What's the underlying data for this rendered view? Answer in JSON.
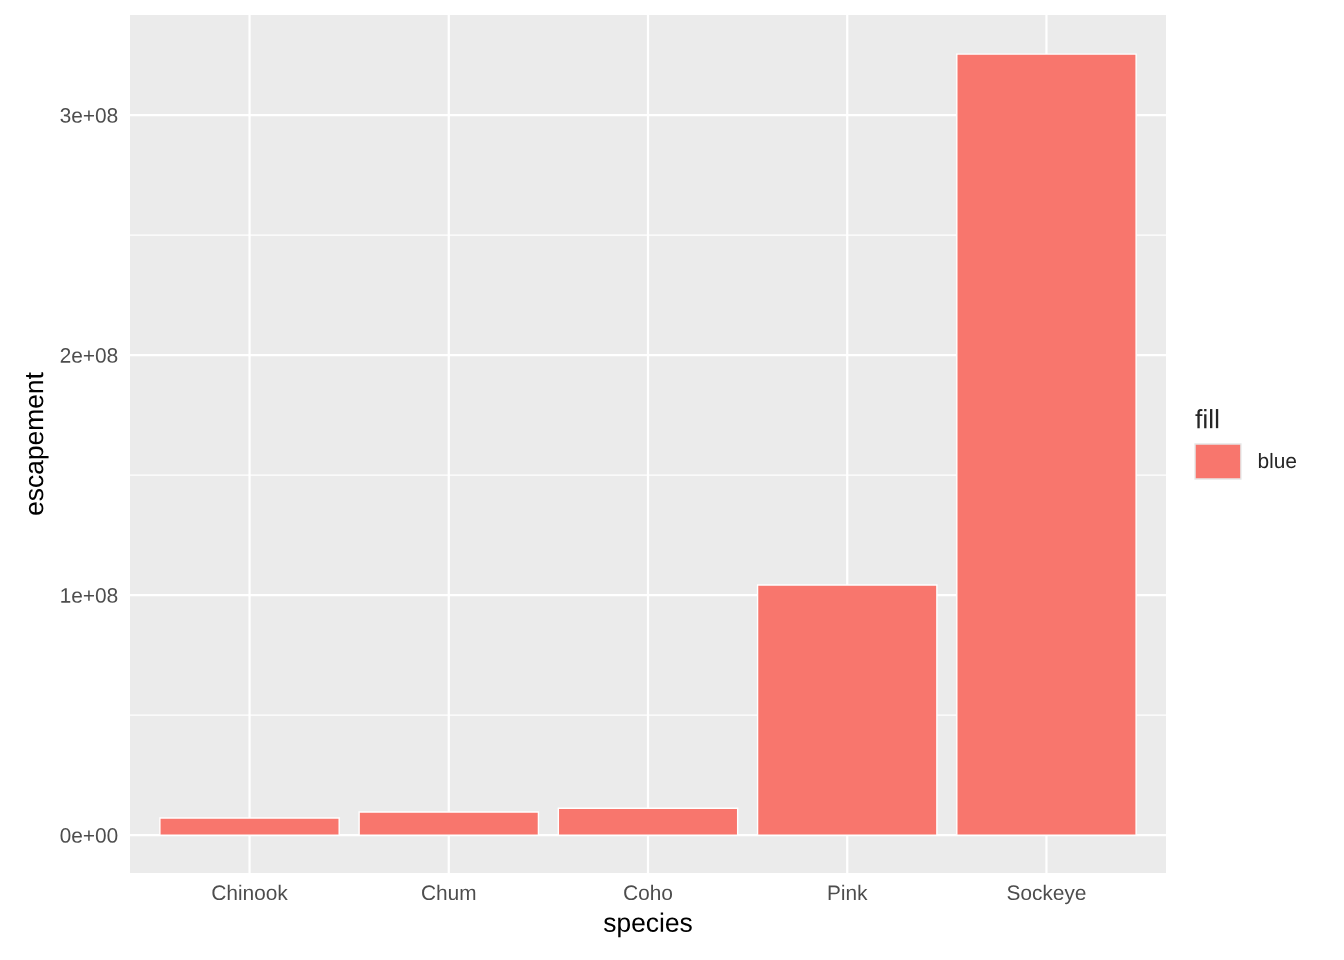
{
  "chart_data": {
    "type": "bar",
    "xlabel": "species",
    "ylabel": "escapement",
    "legend_title": "fill",
    "legend": "right",
    "grid": true,
    "categories": [
      "Chinook",
      "Chum",
      "Coho",
      "Pink",
      "Sockeye"
    ],
    "series": [
      {
        "name": "blue",
        "color": "#f8766d",
        "values": [
          7100000,
          9600000,
          11200000,
          104200000,
          325400000
        ]
      }
    ],
    "ylim": [
      -15800000,
      341700000
    ],
    "yticks": [
      {
        "value": 0,
        "label": "0e+00"
      },
      {
        "value": 100000000,
        "label": "1e+08"
      },
      {
        "value": 200000000,
        "label": "2e+08"
      },
      {
        "value": 300000000,
        "label": "3e+08"
      }
    ]
  }
}
